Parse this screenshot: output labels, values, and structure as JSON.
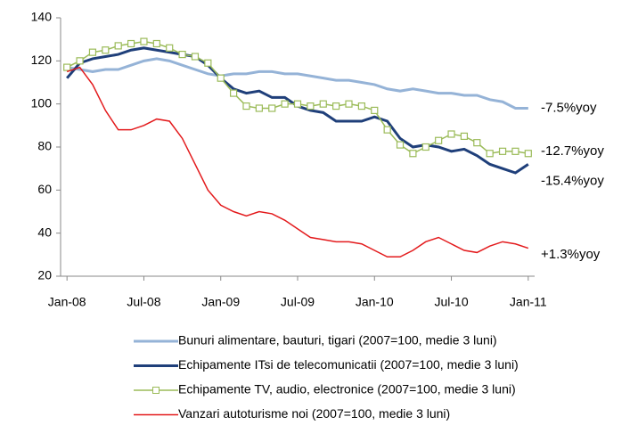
{
  "chart_data": {
    "type": "line",
    "categories": [
      "Jan-08",
      null,
      null,
      null,
      null,
      null,
      "Jul-08",
      null,
      null,
      null,
      null,
      null,
      "Jan-09",
      null,
      null,
      null,
      null,
      null,
      "Jul-09",
      null,
      null,
      null,
      null,
      null,
      "Jan-10",
      null,
      null,
      null,
      null,
      null,
      "Jul-10",
      null,
      null,
      null,
      null,
      null,
      "Jan-11"
    ],
    "ylim": [
      20,
      140
    ],
    "yticks": [
      20,
      40,
      60,
      80,
      100,
      120,
      140
    ],
    "series": [
      {
        "name": "Bunuri alimentare, bauturi, tigari (2007=100, medie 3 luni)",
        "color": "#95b3d7",
        "width": 3,
        "values": [
          117,
          116,
          115,
          116,
          116,
          118,
          120,
          121,
          120,
          118,
          116,
          114,
          113,
          114,
          114,
          115,
          115,
          114,
          114,
          113,
          112,
          111,
          111,
          110,
          109,
          107,
          106,
          107,
          106,
          105,
          105,
          104,
          104,
          102,
          101,
          98,
          98
        ]
      },
      {
        "name": "Echipamente ITsi de telecomunicatii (2007=100, medie 3 luni)",
        "color": "#1f3f7a",
        "width": 3,
        "values": [
          112,
          119,
          121,
          122,
          123,
          125,
          126,
          125,
          124,
          123,
          122,
          118,
          112,
          107,
          105,
          106,
          103,
          103,
          99,
          97,
          96,
          92,
          92,
          92,
          94,
          92,
          84,
          80,
          81,
          80,
          78,
          79,
          76,
          72,
          70,
          68,
          72
        ]
      },
      {
        "name": "Echipamente TV, audio, electronice (2007=100, medie 3 luni)",
        "color": "#9bbb59",
        "width": 1.5,
        "marker": "square",
        "values": [
          117,
          120,
          124,
          125,
          127,
          128,
          129,
          128,
          126,
          123,
          122,
          119,
          112,
          105,
          99,
          98,
          98,
          100,
          100,
          99,
          100,
          99,
          100,
          99,
          97,
          88,
          81,
          77,
          80,
          83,
          86,
          85,
          82,
          77,
          78,
          78,
          77
        ]
      },
      {
        "name": "Vanzari autoturisme noi (2007=100, medie 3 luni)",
        "color": "#e31a1c",
        "width": 1.5,
        "values": [
          115,
          117,
          109,
          97,
          88,
          88,
          90,
          93,
          92,
          84,
          72,
          60,
          53,
          50,
          48,
          50,
          49,
          46,
          42,
          38,
          37,
          36,
          36,
          35,
          32,
          29,
          29,
          32,
          36,
          38,
          35,
          32,
          31,
          34,
          36,
          35,
          33
        ]
      }
    ],
    "annotations": [
      {
        "text": "-7.5%yoy",
        "color": "#4a72a8",
        "y": 98
      },
      {
        "text": "-12.7%yoy",
        "color": "#86a844",
        "y": 78
      },
      {
        "text": "-15.4%yoy",
        "color": "#1f3f7a",
        "y": 64
      },
      {
        "text": "+1.3%yoy",
        "color": "#e31a1c",
        "y": 30
      }
    ]
  }
}
